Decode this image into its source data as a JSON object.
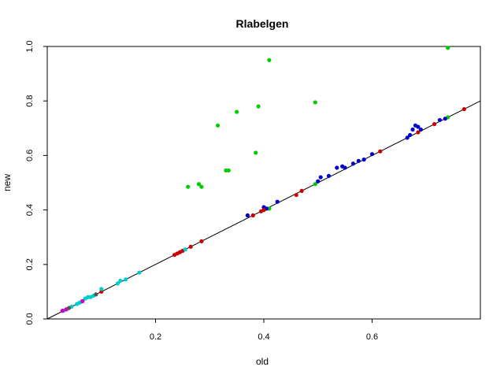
{
  "chart_data": {
    "type": "scatter",
    "title": "Rlabelgen",
    "xlabel": "old",
    "ylabel": "new",
    "xlim": [
      0.0,
      0.8
    ],
    "ylim": [
      0.0,
      1.0
    ],
    "xticks": [
      "0.2",
      "0.4",
      "0.6"
    ],
    "yticks": [
      "0.0",
      "0.2",
      "0.4",
      "0.6",
      "0.8",
      "1.0"
    ],
    "xtick_values": [
      0.2,
      0.4,
      0.6
    ],
    "ytick_values": [
      0.0,
      0.2,
      0.4,
      0.6,
      0.8,
      1.0
    ],
    "reference_line": {
      "intercept": 0,
      "slope": 1
    },
    "grid": false,
    "legend": false,
    "series": [
      {
        "color": "#00cc00",
        "points": [
          [
            0.26,
            0.485
          ],
          [
            0.28,
            0.495
          ],
          [
            0.285,
            0.485
          ],
          [
            0.315,
            0.71
          ],
          [
            0.33,
            0.545
          ],
          [
            0.335,
            0.545
          ],
          [
            0.35,
            0.76
          ],
          [
            0.385,
            0.61
          ],
          [
            0.39,
            0.78
          ],
          [
            0.41,
            0.95
          ],
          [
            0.495,
            0.795
          ],
          [
            0.74,
            0.995
          ],
          [
            0.495,
            0.495
          ],
          [
            0.41,
            0.405
          ],
          [
            0.74,
            0.74
          ]
        ]
      },
      {
        "color": "#0000cc",
        "points": [
          [
            0.37,
            0.38
          ],
          [
            0.4,
            0.41
          ],
          [
            0.405,
            0.405
          ],
          [
            0.425,
            0.43
          ],
          [
            0.5,
            0.505
          ],
          [
            0.505,
            0.52
          ],
          [
            0.52,
            0.525
          ],
          [
            0.535,
            0.555
          ],
          [
            0.545,
            0.56
          ],
          [
            0.55,
            0.555
          ],
          [
            0.565,
            0.57
          ],
          [
            0.575,
            0.58
          ],
          [
            0.585,
            0.585
          ],
          [
            0.6,
            0.605
          ],
          [
            0.665,
            0.665
          ],
          [
            0.67,
            0.675
          ],
          [
            0.675,
            0.695
          ],
          [
            0.68,
            0.71
          ],
          [
            0.685,
            0.705
          ],
          [
            0.69,
            0.695
          ],
          [
            0.725,
            0.73
          ],
          [
            0.735,
            0.735
          ]
        ]
      },
      {
        "color": "#cc0000",
        "points": [
          [
            0.035,
            0.035
          ],
          [
            0.1,
            0.1
          ],
          [
            0.235,
            0.235
          ],
          [
            0.24,
            0.24
          ],
          [
            0.245,
            0.245
          ],
          [
            0.25,
            0.25
          ],
          [
            0.265,
            0.265
          ],
          [
            0.285,
            0.285
          ],
          [
            0.38,
            0.38
          ],
          [
            0.395,
            0.395
          ],
          [
            0.4,
            0.4
          ],
          [
            0.46,
            0.455
          ],
          [
            0.47,
            0.47
          ],
          [
            0.615,
            0.615
          ],
          [
            0.685,
            0.685
          ],
          [
            0.715,
            0.715
          ],
          [
            0.77,
            0.77
          ]
        ]
      },
      {
        "color": "#00cccc",
        "points": [
          [
            0.03,
            0.03
          ],
          [
            0.045,
            0.045
          ],
          [
            0.055,
            0.055
          ],
          [
            0.06,
            0.06
          ],
          [
            0.065,
            0.065
          ],
          [
            0.07,
            0.075
          ],
          [
            0.075,
            0.08
          ],
          [
            0.08,
            0.08
          ],
          [
            0.085,
            0.085
          ],
          [
            0.09,
            0.09
          ],
          [
            0.1,
            0.11
          ],
          [
            0.13,
            0.13
          ],
          [
            0.135,
            0.14
          ],
          [
            0.145,
            0.145
          ],
          [
            0.17,
            0.17
          ],
          [
            0.255,
            0.255
          ]
        ]
      },
      {
        "color": "#cc00cc",
        "points": [
          [
            0.028,
            0.03
          ],
          [
            0.035,
            0.035
          ],
          [
            0.065,
            0.065
          ]
        ]
      },
      {
        "color": "#555555",
        "points": [
          [
            0.04,
            0.04
          ],
          [
            0.09,
            0.09
          ]
        ]
      }
    ]
  }
}
